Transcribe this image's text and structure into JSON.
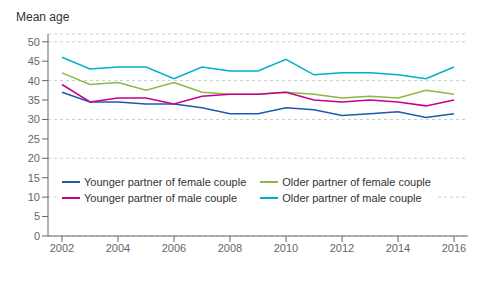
{
  "chart_data": {
    "type": "line",
    "ylabel": "Mean age",
    "x": [
      2002,
      2003,
      2004,
      2005,
      2006,
      2007,
      2008,
      2009,
      2010,
      2011,
      2012,
      2013,
      2014,
      2015,
      2016
    ],
    "series": [
      {
        "name": "Younger partner of female couple",
        "color": "#1f5aab",
        "values": [
          37.0,
          34.5,
          34.5,
          34.0,
          34.0,
          33.0,
          31.5,
          31.5,
          33.0,
          32.5,
          31.0,
          31.5,
          32.0,
          30.5,
          31.5
        ]
      },
      {
        "name": "Older partner of female couple",
        "color": "#8db843",
        "values": [
          42.0,
          39.0,
          39.5,
          37.5,
          39.5,
          37.0,
          36.5,
          36.5,
          37.0,
          36.5,
          35.5,
          36.0,
          35.5,
          37.5,
          36.5
        ]
      },
      {
        "name": "Younger partner of male couple",
        "color": "#c8008f",
        "values": [
          39.0,
          34.5,
          35.5,
          35.5,
          34.0,
          36.0,
          36.5,
          36.5,
          37.0,
          35.0,
          34.5,
          35.0,
          34.5,
          33.5,
          35.0
        ]
      },
      {
        "name": "Older partner of male couple",
        "color": "#00b0c8",
        "values": [
          46.0,
          43.0,
          43.5,
          43.5,
          40.5,
          43.5,
          42.5,
          42.5,
          45.5,
          41.5,
          42.0,
          42.0,
          41.5,
          40.5,
          43.5
        ]
      }
    ],
    "xlim": [
      2001.5,
      2016.5
    ],
    "xticks": [
      2002,
      2004,
      2006,
      2008,
      2010,
      2012,
      2014,
      2016
    ],
    "ylim": [
      0,
      52
    ],
    "yticks": [
      0,
      5,
      10,
      15,
      20,
      25,
      30,
      35,
      40,
      45,
      50
    ],
    "grid": true,
    "legend": "lower left"
  }
}
